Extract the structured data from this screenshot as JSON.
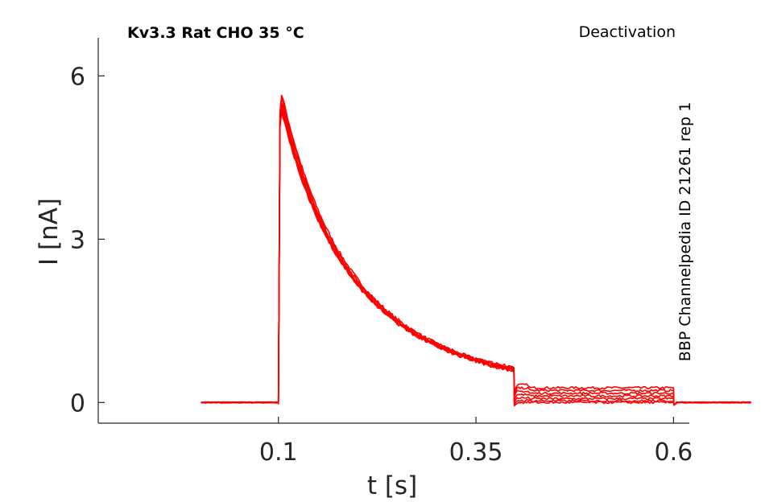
{
  "chart_data": {
    "type": "line",
    "title": "Kv3.3  Rat  CHO  35 °C",
    "annotation": "Deactivation",
    "side_label": "BBP Channelpedia ID 21261 rep 1",
    "xlabel": "t [s]",
    "ylabel": "I [nA]",
    "xlim": [
      -0.128,
      0.62
    ],
    "ylim": [
      -0.38,
      6.7
    ],
    "xticks": [
      0.1,
      0.35,
      0.6
    ],
    "xtick_labels": [
      "0.1",
      "0.35",
      "0.6"
    ],
    "yticks": [
      0,
      3,
      6
    ],
    "ytick_labels": [
      "0",
      "3",
      "6"
    ],
    "grid": false,
    "line_color": "#ff0000",
    "protocol": {
      "baseline_end": 0.1,
      "step1_end": 0.398,
      "step2_end": 0.6,
      "x_start": 0.002,
      "x_end": 0.7
    },
    "series": [
      {
        "peak": 5.95,
        "level_step1_end": 0.62,
        "level_step2": 0.27
      },
      {
        "peak": 5.88,
        "level_step1_end": 0.6,
        "level_step2": 0.22
      },
      {
        "peak": 5.8,
        "level_step1_end": 0.63,
        "level_step2": 0.17
      },
      {
        "peak": 5.75,
        "level_step1_end": 0.58,
        "level_step2": 0.12
      },
      {
        "peak": 5.7,
        "level_step1_end": 0.61,
        "level_step2": 0.07
      },
      {
        "peak": 5.65,
        "level_step1_end": 0.59,
        "level_step2": 0.03
      },
      {
        "peak": 5.6,
        "level_step1_end": 0.64,
        "level_step2": 0.0
      }
    ]
  }
}
